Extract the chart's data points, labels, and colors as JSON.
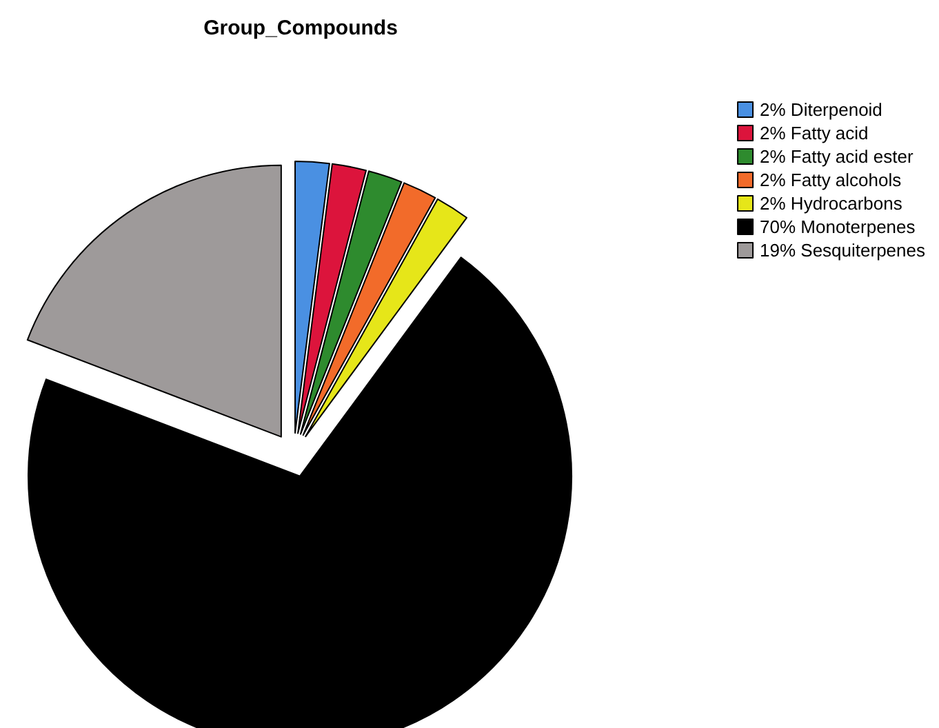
{
  "chart_data": {
    "type": "pie",
    "title": "Group_Compounds",
    "categories": [
      "2% Diterpenoid",
      "2% Fatty acid",
      "2% Fatty acid ester",
      "2% Fatty alcohols",
      "2% Hydrocarbons",
      "70% Monoterpenes",
      "19% Sesquiterpenes"
    ],
    "values": [
      2,
      2,
      2,
      2,
      2,
      70,
      19
    ],
    "colors": [
      "#4a90e2",
      "#dc143c",
      "#2e8b2e",
      "#f26b2a",
      "#e6e619",
      "#000000",
      "#9e9a9a"
    ],
    "legend": "right"
  }
}
